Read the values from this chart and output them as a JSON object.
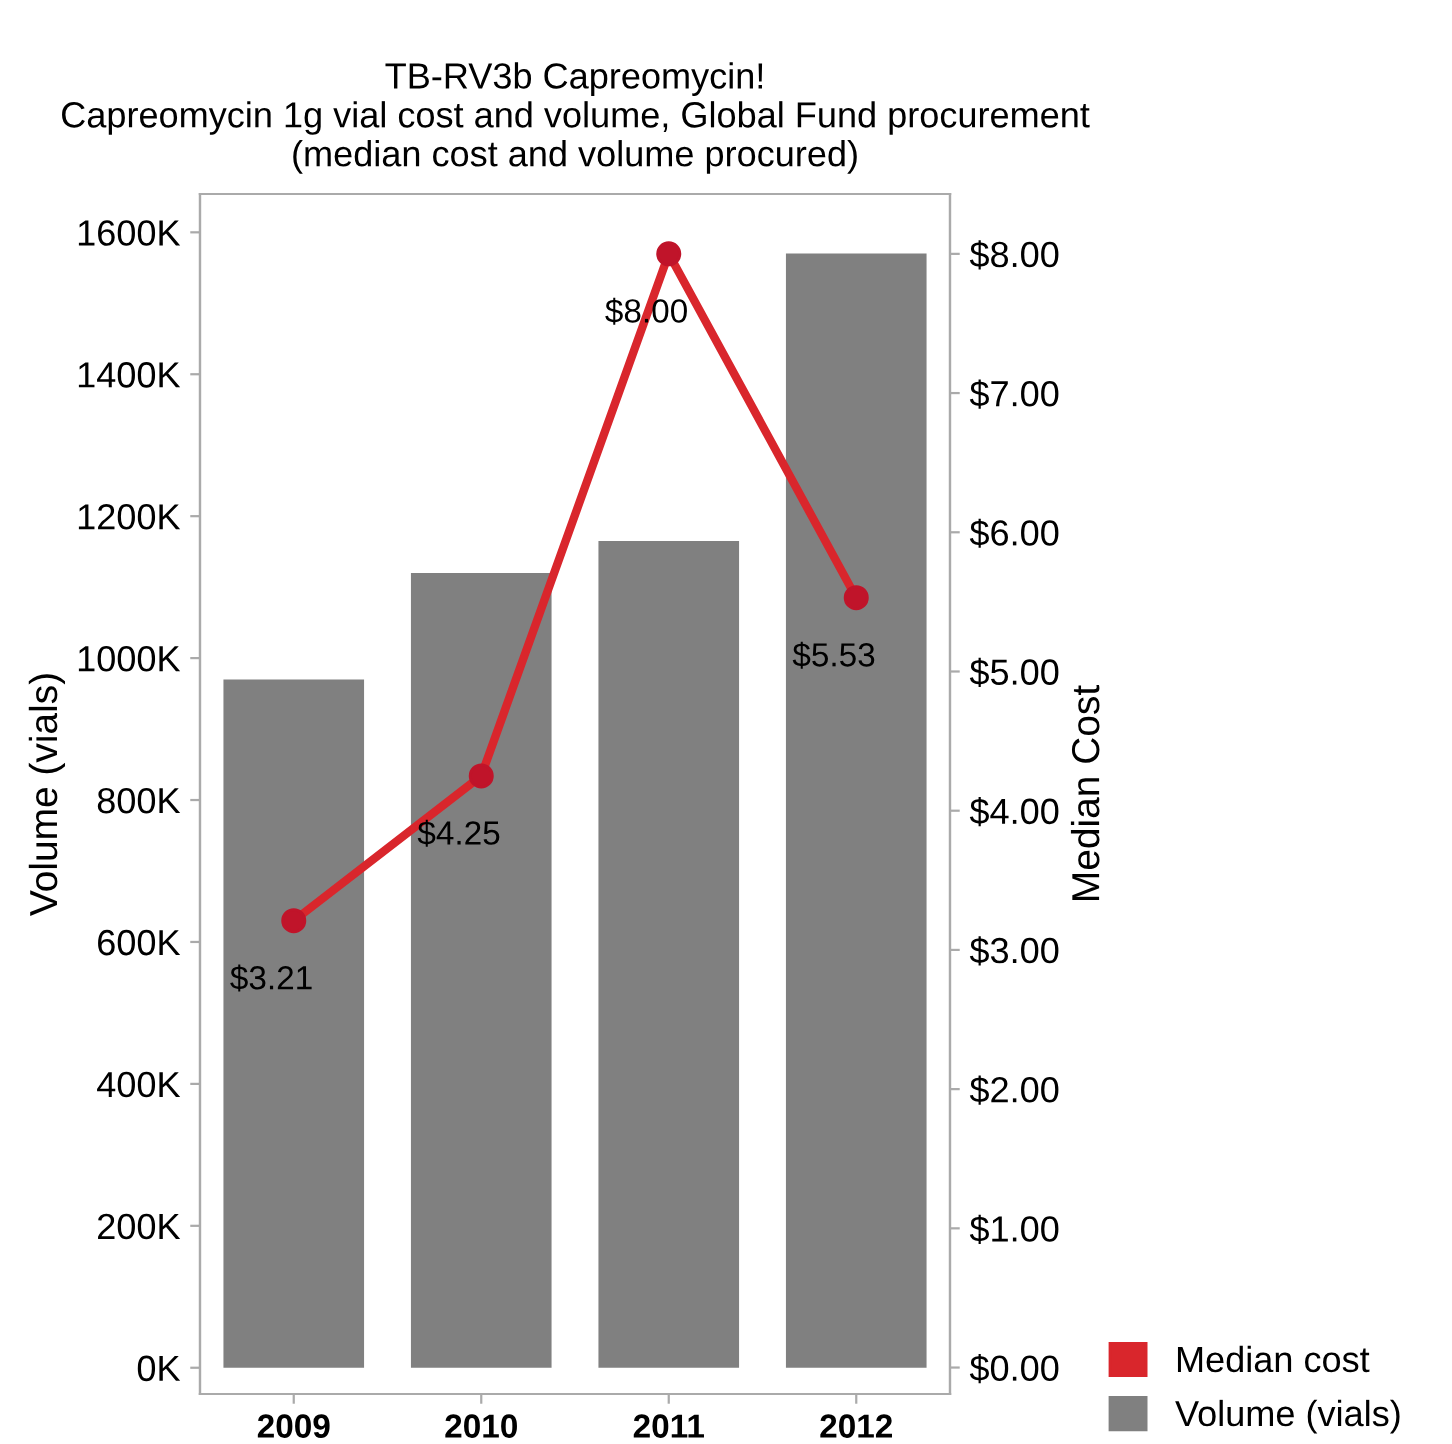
{
  "chart_data": {
    "type": "bar",
    "title": "TB-RV3b Capreomycin!\nCapreomycin 1g vial cost and volume, Global Fund procurement\n(median cost and volume procured)",
    "ylabel": "Volume (vials)",
    "y2label": "Median Cost",
    "categories": [
      "2009",
      "2010",
      "2011",
      "2012"
    ],
    "series": [
      {
        "name": "Volume (vials)",
        "color": "#808080",
        "values": [
          970,
          1120,
          1165,
          1570
        ]
      },
      {
        "name": "Median cost",
        "type": "line",
        "axis": "y2",
        "color": "#d9262c",
        "values": [
          3.21,
          4.25,
          8.0,
          5.53
        ],
        "value_labels": [
          "$3.21",
          "$4.25",
          "$8.00",
          "$5.53"
        ]
      }
    ],
    "ylim": [
      -37,
      1654
    ],
    "yticks": [
      {
        "value": 0,
        "label": "0K"
      },
      {
        "value": 200,
        "label": "200K"
      },
      {
        "value": 400,
        "label": "400K"
      },
      {
        "value": 600,
        "label": "600K"
      },
      {
        "value": 800,
        "label": "800K"
      },
      {
        "value": 1000,
        "label": "1000K"
      },
      {
        "value": 1200,
        "label": "1200K"
      },
      {
        "value": 1400,
        "label": "1400K"
      },
      {
        "value": 1600,
        "label": "1600K"
      }
    ],
    "y2lim": [
      -0.19,
      8.43
    ],
    "y2ticks": [
      {
        "value": 0,
        "label": "$0.00"
      },
      {
        "value": 1,
        "label": "$1.00"
      },
      {
        "value": 2,
        "label": "$2.00"
      },
      {
        "value": 3,
        "label": "$3.00"
      },
      {
        "value": 4,
        "label": "$4.00"
      },
      {
        "value": 5,
        "label": "$5.00"
      },
      {
        "value": 6,
        "label": "$6.00"
      },
      {
        "value": 7,
        "label": "$7.00"
      },
      {
        "value": 8,
        "label": "$8.00"
      }
    ],
    "marker": "circle",
    "line_style": "solid",
    "legend": "bottom right",
    "grid": false
  }
}
